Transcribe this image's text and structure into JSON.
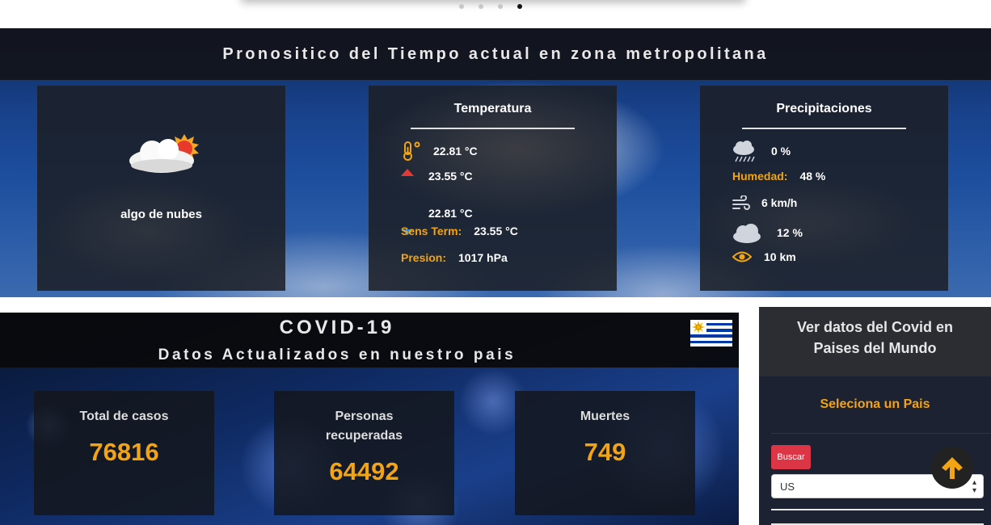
{
  "carousel": {
    "dots": 4,
    "active_index": 3
  },
  "weather": {
    "title": "Pronositico del Tiempo actual en zona metropolitana",
    "condition": {
      "icon": "cloud-sun-icon",
      "label": "algo de nubes"
    },
    "temperature": {
      "title": "Temperatura",
      "current": "22.81 °C",
      "max": "23.55 °C",
      "min": "22.81 °C",
      "feels_label": "Sens Term:",
      "feels": "23.55 °C",
      "pressure_label": "Presion:",
      "pressure": "1017 hPa"
    },
    "precipitation": {
      "title": "Precipitaciones",
      "rain": "0 %",
      "humidity_label": "Humedad:",
      "humidity": "48 %",
      "wind": "6 km/h",
      "clouds": "12 %",
      "visibility": "10 km"
    }
  },
  "covid": {
    "title": "COVID-19",
    "subtitle": "Datos Actualizados en nuestro pais",
    "flag": "uruguay-flag",
    "stats": [
      {
        "label": "Total de casos",
        "value": "76816"
      },
      {
        "label": "Personas recuperadas",
        "value": "64492"
      },
      {
        "label": "Muertes",
        "value": "749"
      }
    ]
  },
  "sidebar": {
    "title": "Ver datos del Covid en Paises del Mundo",
    "select_title": "Seleciona un Pais",
    "search_button": "Buscar",
    "country_value": "US"
  },
  "colors": {
    "accent": "#f2a413",
    "danger": "#dc3545",
    "dark": "#1b1e26"
  }
}
